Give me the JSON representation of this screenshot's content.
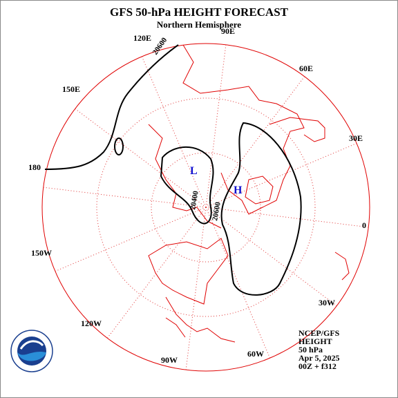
{
  "header": {
    "title": "GFS 50-hPa HEIGHT FORECAST",
    "subtitle": "Northern Hemisphere"
  },
  "longitude_labels": [
    "90E",
    "60E",
    "30E",
    "0",
    "30W",
    "60W",
    "90W",
    "120W",
    "150W",
    "180",
    "150E",
    "120E"
  ],
  "contour_labels": [
    "20600",
    "20400",
    "20600"
  ],
  "centers": [
    "L",
    "H"
  ],
  "info": [
    "NCEP/GFS",
    "HEIGHT",
    "50 hPa",
    "Apr 5, 2025",
    "00Z + f312"
  ]
}
